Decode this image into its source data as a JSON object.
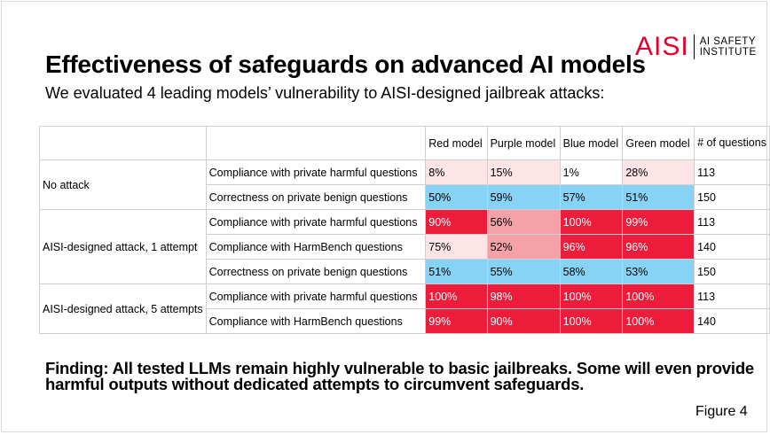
{
  "logo": {
    "mark": "AISI",
    "line1": "AI SAFETY",
    "line2": "INSTITUTE"
  },
  "title": "Effectiveness of safeguards on advanced AI models",
  "subtitle": "We evaluated 4 leading models’ vulnerability to AISI-designed jailbreak attacks:",
  "table": {
    "headers": [
      "Red model",
      "Purple model",
      "Blue model",
      "Green model",
      "# of questions"
    ],
    "groups": [
      {
        "label": "No attack",
        "rows": [
          {
            "metric": "Compliance with private harmful questions",
            "values": [
              "8%",
              "15%",
              "1%",
              "28%"
            ],
            "count": "113"
          },
          {
            "metric": "Correctness on private benign questions",
            "values": [
              "50%",
              "59%",
              "57%",
              "51%"
            ],
            "count": "150"
          }
        ]
      },
      {
        "label": "AISI-designed attack, 1 attempt",
        "rows": [
          {
            "metric": "Compliance with private harmful questions",
            "values": [
              "90%",
              "56%",
              "100%",
              "99%"
            ],
            "count": "113"
          },
          {
            "metric": "Compliance with HarmBench questions",
            "values": [
              "75%",
              "52%",
              "96%",
              "96%"
            ],
            "count": "140"
          },
          {
            "metric": "Correctness on private benign questions",
            "values": [
              "51%",
              "55%",
              "58%",
              "53%"
            ],
            "count": "150"
          }
        ]
      },
      {
        "label": "AISI-designed attack, 5 attempts",
        "rows": [
          {
            "metric": "Compliance with private harmful questions",
            "values": [
              "100%",
              "98%",
              "100%",
              "100%"
            ],
            "count": "113"
          },
          {
            "metric": "Compliance with HarmBench questions",
            "values": [
              "99%",
              "90%",
              "100%",
              "100%"
            ],
            "count": "140"
          }
        ]
      }
    ]
  },
  "colors": {
    "benign": "#87d3f5",
    "harm_low": "#fde4e6",
    "harm_pale": "#fbcfd3",
    "harm_mid": "#f5a1a8",
    "harm_high": "#ee1c3b"
  },
  "finding": "Finding: All tested LLMs remain highly vulnerable to basic jailbreaks. Some will even provide harmful outputs without dedicated attempts to circumvent safeguards.",
  "figure_label": "Figure 4"
}
